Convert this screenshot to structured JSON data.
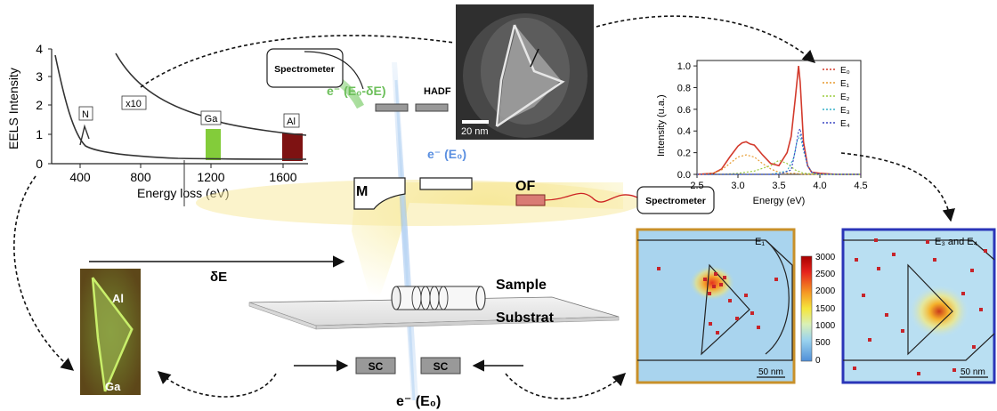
{
  "eels": {
    "ylabel": "EELS Intensity",
    "xlabel": "Energy loss (eV)",
    "yticks": [
      "0",
      "1",
      "2",
      "3",
      "4"
    ],
    "xticks": [
      "400",
      "800",
      "1200",
      "1600"
    ],
    "x10": "x10",
    "peaks": [
      "N",
      "Ga",
      "Al"
    ]
  },
  "stem_scale": "20 nm",
  "spectrometer_top": "Spectrometer",
  "spectrometer_right": "Spectrometer",
  "beam_loss_label": "e⁻ (E₀-δE)",
  "beam_label": "e⁻ (E₀)",
  "beam_bottom_label": "e⁻ (E₀)",
  "hadf": "HADF",
  "mirror": "M",
  "of": "OF",
  "delta_e": "δE",
  "sample": "Sample",
  "substrat": "Substrat",
  "sc": "SC",
  "cl_labels": {
    "top": "Al",
    "bottom": "Ga"
  },
  "map1": {
    "label": "E₁",
    "scale": "50 nm"
  },
  "map2": {
    "label": "E₃ and E₄",
    "scale": "50 nm"
  },
  "colorbar_ticks": [
    "3000",
    "2500",
    "2000",
    "1500",
    "1000",
    "500",
    "0"
  ],
  "chart_data": {
    "type": "line",
    "xlabel": "Energy (eV)",
    "ylabel": "Intensity (u.a.)",
    "xlim": [
      2.5,
      4.5
    ],
    "ylim": [
      0,
      1.05
    ],
    "xticks": [
      "2.5",
      "3.0",
      "3.5",
      "4.0",
      "4.5"
    ],
    "yticks": [
      "0.0",
      "0.2",
      "0.4",
      "0.6",
      "0.8",
      "1.0"
    ],
    "legend_position": "top-right",
    "series": [
      {
        "name": "E₀",
        "color": "#d33a2c",
        "x": [
          2.5,
          2.7,
          2.8,
          2.9,
          3.0,
          3.05,
          3.1,
          3.15,
          3.2,
          3.3,
          3.4,
          3.5,
          3.6,
          3.65,
          3.7,
          3.74,
          3.76,
          3.8,
          3.85,
          3.9,
          4.0,
          4.2,
          4.5
        ],
        "y": [
          0.0,
          0.01,
          0.05,
          0.16,
          0.26,
          0.29,
          0.3,
          0.28,
          0.27,
          0.18,
          0.1,
          0.08,
          0.2,
          0.35,
          0.7,
          1.0,
          0.85,
          0.3,
          0.08,
          0.02,
          0.01,
          0.0,
          0.0
        ]
      },
      {
        "name": "E₁",
        "color": "#e79a2e",
        "x": [
          2.5,
          2.7,
          2.8,
          2.9,
          3.0,
          3.1,
          3.2,
          3.3,
          3.4,
          3.5,
          3.6,
          3.7,
          3.8,
          4.0,
          4.5
        ],
        "y": [
          0.0,
          0.01,
          0.04,
          0.1,
          0.16,
          0.18,
          0.16,
          0.1,
          0.05,
          0.02,
          0.01,
          0.01,
          0.0,
          0.0,
          0.0
        ]
      },
      {
        "name": "E₂",
        "color": "#9bcc3e",
        "x": [
          2.5,
          2.8,
          3.0,
          3.2,
          3.4,
          3.5,
          3.6,
          3.7,
          3.8,
          4.0,
          4.5
        ],
        "y": [
          0.0,
          0.0,
          0.01,
          0.03,
          0.08,
          0.13,
          0.1,
          0.04,
          0.01,
          0.0,
          0.0
        ]
      },
      {
        "name": "E₃",
        "color": "#36b0c9",
        "x": [
          2.5,
          3.4,
          3.6,
          3.68,
          3.72,
          3.76,
          3.8,
          3.85,
          3.9,
          4.0,
          4.5
        ],
        "y": [
          0.0,
          0.0,
          0.03,
          0.15,
          0.3,
          0.36,
          0.22,
          0.08,
          0.02,
          0.0,
          0.0
        ]
      },
      {
        "name": "E₄",
        "color": "#3b46c4",
        "x": [
          2.5,
          3.5,
          3.65,
          3.7,
          3.74,
          3.76,
          3.8,
          3.85,
          3.9,
          4.0,
          4.5
        ],
        "y": [
          0.0,
          0.0,
          0.04,
          0.22,
          0.4,
          0.42,
          0.25,
          0.08,
          0.02,
          0.0,
          0.0
        ]
      }
    ]
  }
}
